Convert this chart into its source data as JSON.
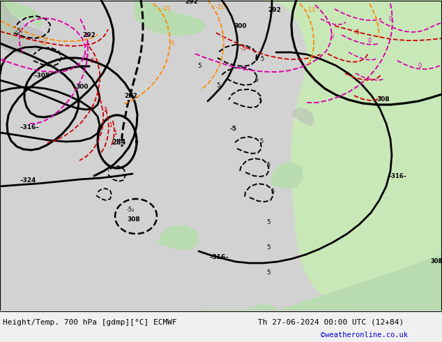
{
  "title_left": "Height/Temp. 700 hPa [gdmp][°C] ECMWF",
  "title_right": "Th 27-06-2024 00:00 UTC (12+84)",
  "credit": "©weatheronline.co.uk",
  "ocean_color": "#d2d2d2",
  "land_gray_color": "#b8b8b8",
  "land_green_color": "#b8dcb0",
  "land_green2_color": "#c8e8b8",
  "bottom_bg": "#f0f0f0",
  "black": "#000000",
  "red": "#cc0000",
  "pink": "#dd00aa",
  "orange": "#ff8800",
  "figwidth": 6.34,
  "figheight": 4.9,
  "dpi": 100
}
